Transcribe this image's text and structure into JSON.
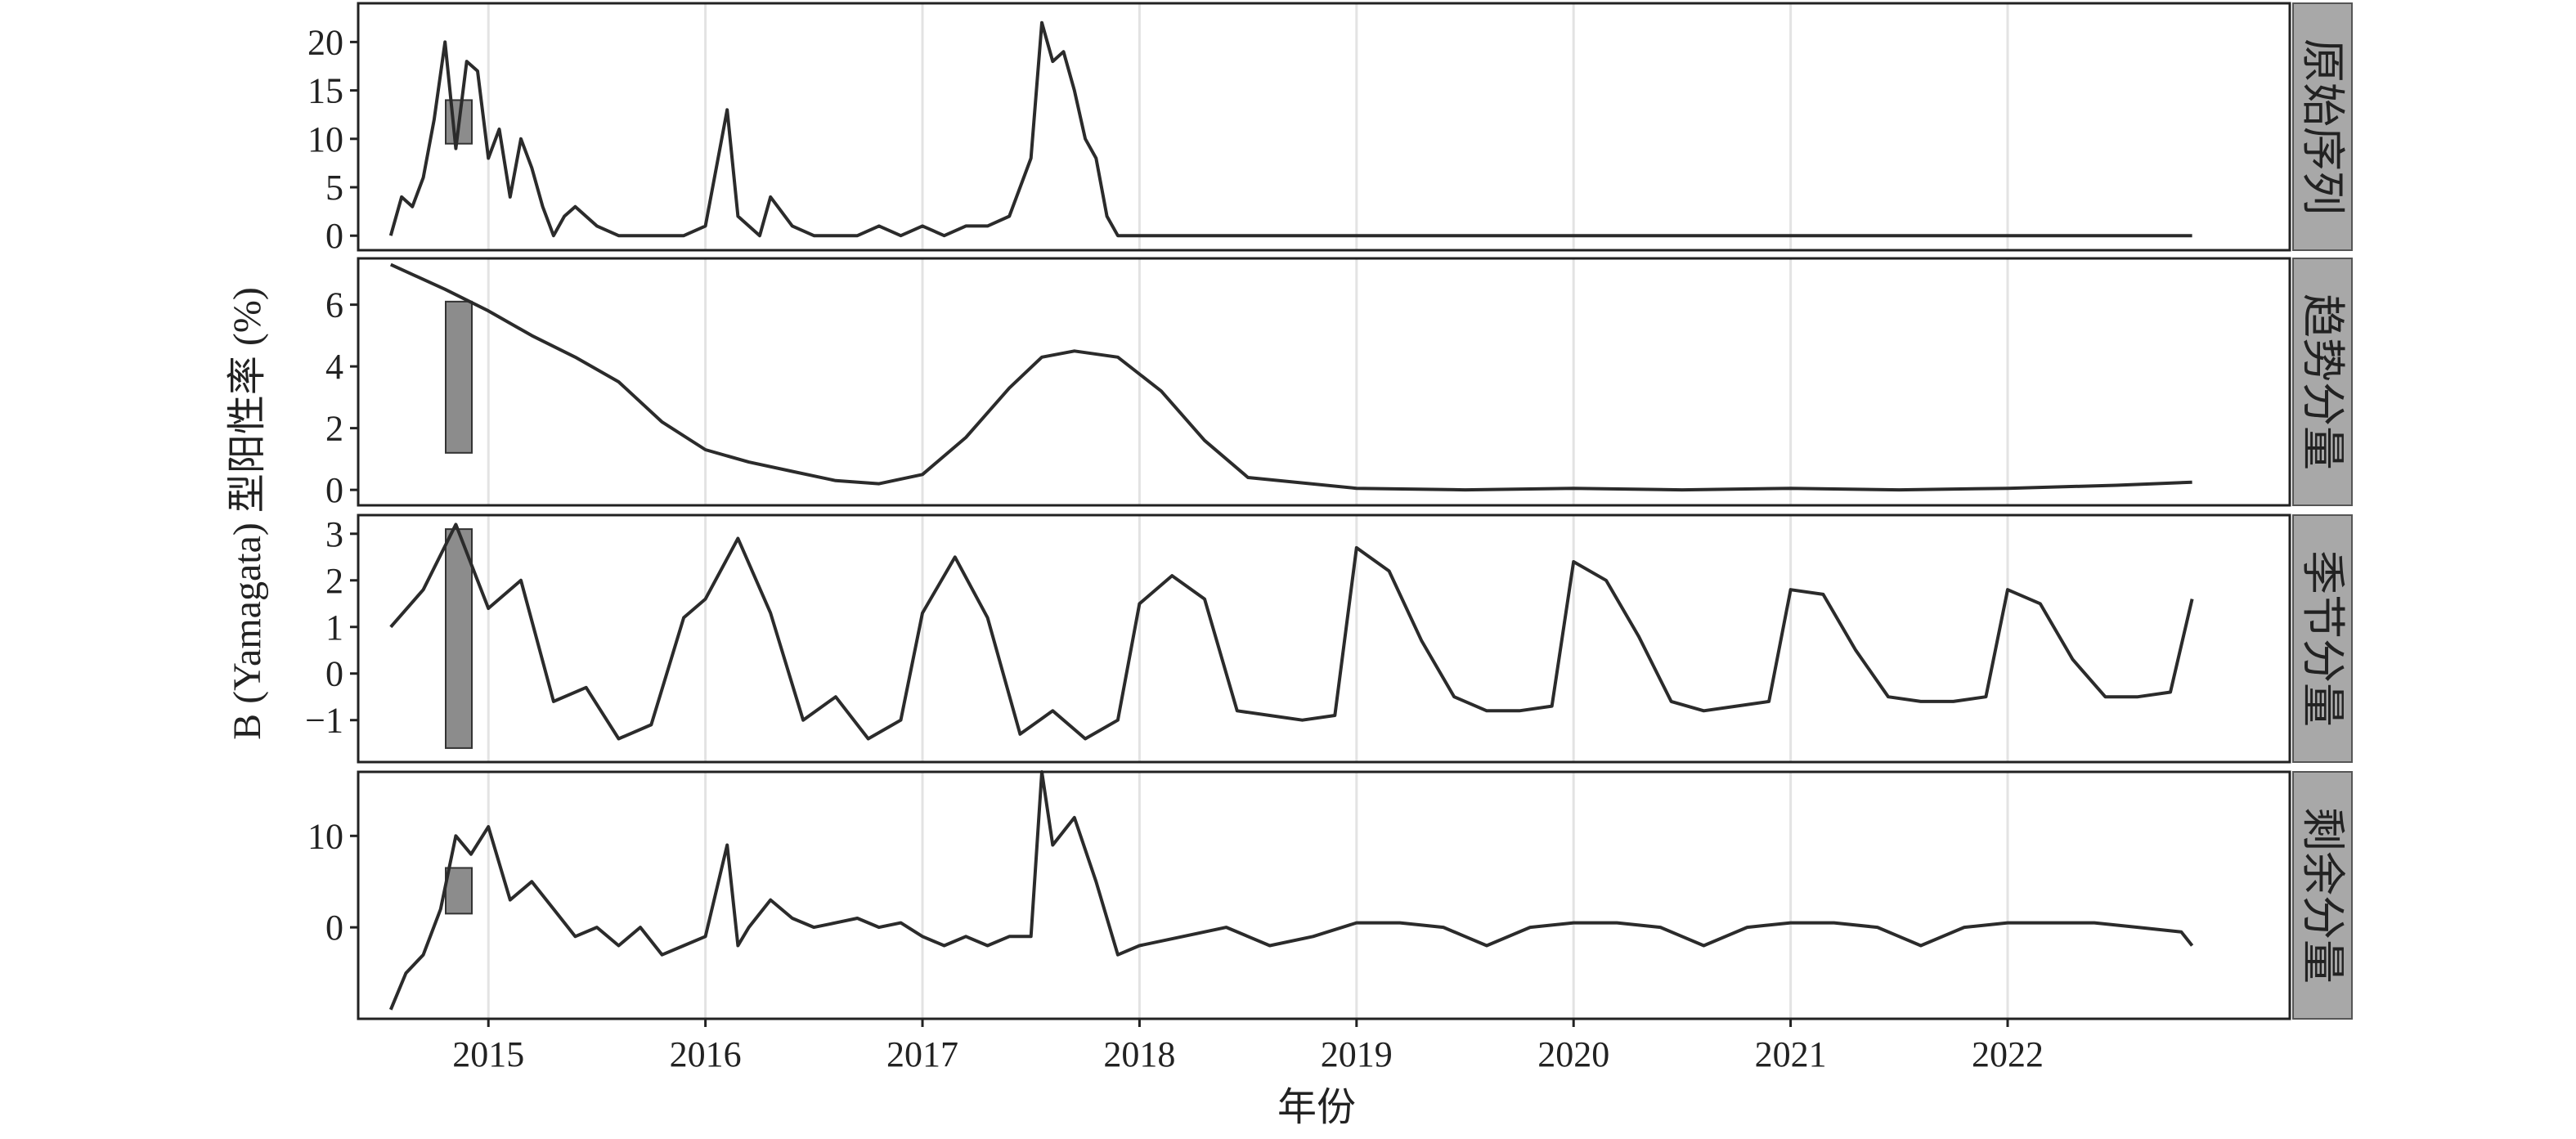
{
  "chart_data": {
    "type": "line",
    "title": "",
    "ylabel": "B (Yamagata) 型阳性率 (%)",
    "xlabel": "年份",
    "x_tick_labels": [
      "2015",
      "2016",
      "2017",
      "2018",
      "2019",
      "2020",
      "2021",
      "2022"
    ],
    "x_range": [
      2014.4,
      2023.3
    ],
    "grid": "vertical",
    "line_color": "#2b2b2b",
    "panels": [
      {
        "name": "原始序列",
        "ylim": [
          -1.5,
          24
        ],
        "yticks": [
          0,
          5,
          10,
          15,
          20
        ],
        "scale_bar": [
          9.5,
          14
        ],
        "x": [
          2014.55,
          2014.6,
          2014.65,
          2014.7,
          2014.75,
          2014.8,
          2014.85,
          2014.9,
          2014.95,
          2015.0,
          2015.05,
          2015.1,
          2015.15,
          2015.2,
          2015.25,
          2015.3,
          2015.35,
          2015.4,
          2015.5,
          2015.6,
          2015.7,
          2015.8,
          2015.9,
          2016.0,
          2016.1,
          2016.15,
          2016.2,
          2016.25,
          2016.3,
          2016.4,
          2016.5,
          2016.6,
          2016.7,
          2016.8,
          2016.9,
          2017.0,
          2017.1,
          2017.2,
          2017.3,
          2017.4,
          2017.5,
          2017.55,
          2017.6,
          2017.65,
          2017.7,
          2017.75,
          2017.8,
          2017.85,
          2017.9,
          2017.95,
          2018.0,
          2018.1,
          2018.2,
          2018.3,
          2018.5,
          2019.0,
          2020.0,
          2021.0,
          2022.0,
          2022.85
        ],
        "values": [
          0,
          4,
          3,
          6,
          12,
          20,
          9,
          18,
          17,
          8,
          11,
          4,
          10,
          7,
          3,
          0,
          2,
          3,
          1,
          0,
          0,
          0,
          0,
          1,
          13,
          2,
          1,
          0,
          4,
          1,
          0,
          0,
          0,
          1,
          0,
          1,
          0,
          1,
          1,
          2,
          8,
          22,
          18,
          19,
          15,
          10,
          8,
          2,
          0,
          0,
          0,
          0,
          0,
          0,
          0,
          0,
          0,
          0,
          0,
          0
        ]
      },
      {
        "name": "趋势分量",
        "ylim": [
          -0.5,
          7.5
        ],
        "yticks": [
          0,
          2,
          4,
          6
        ],
        "scale_bar": [
          1.2,
          6.1
        ],
        "x": [
          2014.55,
          2014.8,
          2015.0,
          2015.2,
          2015.4,
          2015.6,
          2015.8,
          2016.0,
          2016.2,
          2016.4,
          2016.6,
          2016.8,
          2017.0,
          2017.2,
          2017.4,
          2017.55,
          2017.7,
          2017.9,
          2018.1,
          2018.3,
          2018.5,
          2019.0,
          2019.5,
          2020.0,
          2020.5,
          2021.0,
          2021.5,
          2022.0,
          2022.5,
          2022.85
        ],
        "values": [
          7.3,
          6.5,
          5.8,
          5.0,
          4.3,
          3.5,
          2.2,
          1.3,
          0.9,
          0.6,
          0.3,
          0.2,
          0.5,
          1.7,
          3.3,
          4.3,
          4.5,
          4.3,
          3.2,
          1.6,
          0.4,
          0.05,
          0.0,
          0.05,
          0.0,
          0.05,
          0.0,
          0.05,
          0.15,
          0.25
        ]
      },
      {
        "name": "季节分量",
        "ylim": [
          -1.9,
          3.4
        ],
        "yticks": [
          -1,
          0,
          1,
          2,
          3
        ],
        "scale_bar": [
          -1.6,
          3.1
        ],
        "x": [
          2014.55,
          2014.7,
          2014.85,
          2015.0,
          2015.15,
          2015.3,
          2015.45,
          2015.6,
          2015.75,
          2015.9,
          2016.0,
          2016.15,
          2016.3,
          2016.45,
          2016.6,
          2016.75,
          2016.9,
          2017.0,
          2017.15,
          2017.3,
          2017.45,
          2017.6,
          2017.75,
          2017.9,
          2018.0,
          2018.15,
          2018.3,
          2018.45,
          2018.6,
          2018.75,
          2018.9,
          2019.0,
          2019.15,
          2019.3,
          2019.45,
          2019.6,
          2019.75,
          2019.9,
          2020.0,
          2020.15,
          2020.3,
          2020.45,
          2020.6,
          2020.75,
          2020.9,
          2021.0,
          2021.15,
          2021.3,
          2021.45,
          2021.6,
          2021.75,
          2021.9,
          2022.0,
          2022.15,
          2022.3,
          2022.45,
          2022.6,
          2022.75,
          2022.85
        ],
        "values": [
          1.0,
          1.8,
          3.2,
          1.4,
          2.0,
          -0.6,
          -0.3,
          -1.4,
          -1.1,
          1.2,
          1.6,
          2.9,
          1.3,
          -1.0,
          -0.5,
          -1.4,
          -1.0,
          1.3,
          2.5,
          1.2,
          -1.3,
          -0.8,
          -1.4,
          -1.0,
          1.5,
          2.1,
          1.6,
          -0.8,
          -0.9,
          -1.0,
          -0.9,
          2.7,
          2.2,
          0.7,
          -0.5,
          -0.8,
          -0.8,
          -0.7,
          2.4,
          2.0,
          0.8,
          -0.6,
          -0.8,
          -0.7,
          -0.6,
          1.8,
          1.7,
          0.5,
          -0.5,
          -0.6,
          -0.6,
          -0.5,
          1.8,
          1.5,
          0.3,
          -0.5,
          -0.5,
          -0.4,
          1.6
        ]
      },
      {
        "name": "剩余分量",
        "ylim": [
          -10,
          17
        ],
        "yticks": [
          0,
          10
        ],
        "scale_bar": [
          1.5,
          6.5
        ],
        "x": [
          2014.55,
          2014.62,
          2014.7,
          2014.78,
          2014.85,
          2014.92,
          2015.0,
          2015.1,
          2015.2,
          2015.3,
          2015.4,
          2015.5,
          2015.6,
          2015.7,
          2015.8,
          2015.9,
          2016.0,
          2016.1,
          2016.15,
          2016.2,
          2016.3,
          2016.4,
          2016.5,
          2016.6,
          2016.7,
          2016.8,
          2016.9,
          2017.0,
          2017.1,
          2017.2,
          2017.3,
          2017.4,
          2017.5,
          2017.55,
          2017.6,
          2017.7,
          2017.8,
          2017.9,
          2018.0,
          2018.2,
          2018.4,
          2018.5,
          2018.6,
          2018.8,
          2019.0,
          2019.2,
          2019.4,
          2019.5,
          2019.6,
          2019.8,
          2020.0,
          2020.2,
          2020.4,
          2020.5,
          2020.6,
          2020.8,
          2021.0,
          2021.2,
          2021.4,
          2021.5,
          2021.6,
          2021.8,
          2022.0,
          2022.2,
          2022.4,
          2022.6,
          2022.8,
          2022.85
        ],
        "values": [
          -9,
          -5,
          -3,
          2,
          10,
          8,
          11,
          3,
          5,
          2,
          -1,
          0,
          -2,
          0,
          -3,
          -2,
          -1,
          9,
          -2,
          0,
          3,
          1,
          0,
          0.5,
          1,
          0,
          0.5,
          -1,
          -2,
          -1,
          -2,
          -1,
          -1,
          17,
          9,
          12,
          5,
          -3,
          -2,
          -1,
          0,
          -1,
          -2,
          -1,
          0.5,
          0.5,
          0,
          -1,
          -2,
          0,
          0.5,
          0.5,
          0,
          -1,
          -2,
          0,
          0.5,
          0.5,
          0,
          -1,
          -2,
          0,
          0.5,
          0.5,
          0.5,
          0,
          -0.5,
          -2
        ]
      }
    ]
  }
}
